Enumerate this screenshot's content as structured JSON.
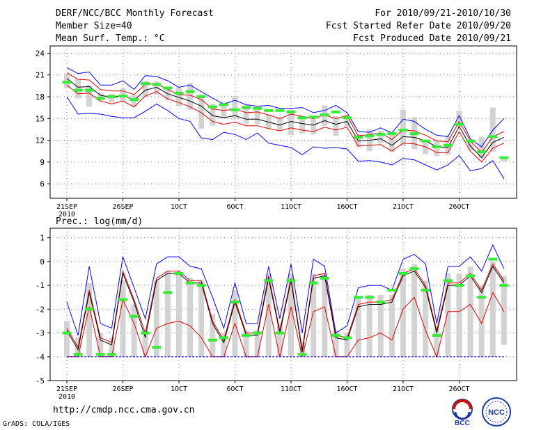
{
  "header": {
    "line1": "DERF/NCC/BCC Monthly Forecast",
    "line2": "Member Size=40",
    "line3": "Mean Surf. Temp.: °C",
    "right1": "For 2010/09/21-2010/10/30",
    "right2": "Fcst Started Refer Date 2010/09/20",
    "right3": "Fcst Produced Date 2010/09/21"
  },
  "footer": {
    "url": "http://cmdp.ncc.cma.gov.cn",
    "credit": "GrADS: COLA/IGES",
    "logo1_text": "BCC",
    "logo2_text": "NCC"
  },
  "colors": {
    "max_line": "#0000ff",
    "min_line": "#0000ff",
    "upper_line": "#e00000",
    "lower_line": "#e00000",
    "mean_line": "#000000",
    "box": "#d3d3d3",
    "median_tick": "#33ee33",
    "grid": "#777777"
  },
  "chart_data": [
    {
      "type": "line",
      "title": "Mean Surf. Temp.: °C",
      "ylim": [
        4,
        25
      ],
      "yticks": [
        6,
        9,
        12,
        15,
        18,
        21,
        24
      ],
      "ylabels": [
        "6",
        "9",
        "12",
        "15",
        "18",
        "21",
        "24"
      ],
      "x_days": 40,
      "xticks": [
        1,
        6,
        11,
        16,
        21,
        26,
        31,
        36
      ],
      "xlabels": [
        "21SEP",
        "26SEP",
        "1OCT",
        "6OCT",
        "11OCT",
        "16OCT",
        "21OCT",
        "26OCT"
      ],
      "xsublabel": "2010",
      "series": [
        {
          "name": "max",
          "values": [
            22.0,
            21.2,
            21.4,
            19.6,
            19.6,
            20.2,
            19.0,
            20.9,
            20.8,
            20.2,
            19.3,
            19.6,
            18.7,
            17.8,
            17.0,
            17.5,
            16.9,
            16.7,
            16.8,
            16.4,
            16.4,
            16.5,
            15.8,
            16.1,
            16.8,
            15.8,
            13.2,
            13.1,
            13.7,
            13.0,
            14.9,
            14.6,
            13.5,
            12.7,
            12.5,
            15.4,
            12.2,
            11.1,
            13.4,
            15.0
          ]
        },
        {
          "name": "upper",
          "values": [
            21.3,
            20.4,
            20.3,
            19.0,
            18.8,
            18.8,
            18.3,
            19.7,
            19.8,
            19.0,
            18.3,
            18.2,
            17.6,
            16.3,
            16.1,
            16.3,
            15.8,
            15.9,
            15.5,
            15.0,
            15.6,
            15.3,
            15.0,
            15.5,
            15.0,
            15.4,
            12.6,
            12.8,
            13.0,
            12.1,
            13.4,
            13.3,
            12.7,
            11.9,
            11.8,
            14.6,
            11.9,
            10.3,
            12.5,
            13.2
          ]
        },
        {
          "name": "mean",
          "values": [
            20.5,
            19.3,
            19.4,
            18.2,
            17.9,
            18.2,
            17.5,
            18.9,
            19.3,
            18.4,
            17.9,
            17.4,
            16.7,
            15.4,
            15.1,
            15.4,
            14.9,
            14.9,
            14.5,
            14.1,
            14.6,
            14.3,
            14.1,
            14.7,
            14.2,
            14.6,
            11.9,
            12.0,
            12.2,
            11.3,
            12.5,
            12.4,
            11.9,
            11.1,
            11.0,
            13.9,
            11.2,
            9.6,
            11.7,
            12.4
          ]
        },
        {
          "name": "lower",
          "values": [
            19.6,
            18.4,
            18.5,
            17.4,
            17.0,
            17.4,
            16.6,
            18.1,
            18.7,
            17.7,
            17.2,
            16.6,
            15.8,
            14.6,
            14.2,
            14.5,
            14.0,
            14.0,
            13.6,
            13.3,
            13.7,
            13.4,
            13.2,
            13.8,
            13.4,
            13.8,
            11.2,
            11.3,
            11.4,
            10.5,
            11.6,
            11.5,
            11.1,
            10.3,
            10.3,
            13.2,
            10.5,
            9.0,
            10.9,
            11.6
          ]
        },
        {
          "name": "min",
          "values": [
            18.0,
            15.6,
            15.7,
            15.6,
            15.3,
            15.1,
            15.1,
            16.0,
            17.0,
            16.1,
            15.0,
            14.6,
            12.3,
            12.1,
            13.1,
            12.8,
            12.1,
            13.0,
            11.6,
            11.3,
            11.0,
            10.0,
            11.1,
            10.9,
            11.0,
            10.8,
            9.1,
            9.2,
            9.0,
            8.6,
            9.5,
            9.3,
            8.6,
            7.9,
            8.6,
            9.9,
            7.8,
            8.1,
            9.2,
            6.7
          ]
        }
      ],
      "box_low": [
        19.2,
        17.8,
        16.6,
        17.4,
        17.2,
        17.3,
        16.6,
        17.9,
        18.3,
        17.5,
        16.7,
        16.2,
        13.6,
        14.0,
        15.0,
        14.9,
        14.3,
        14.2,
        13.6,
        13.3,
        12.7,
        12.9,
        12.8,
        14.0,
        12.6,
        13.9,
        11.0,
        10.5,
        11.6,
        10.4,
        11.2,
        10.8,
        10.1,
        9.8,
        10.0,
        13.8,
        10.6,
        9.5,
        10.4,
        9.1
      ],
      "box_high": [
        21.2,
        20.4,
        19.6,
        18.5,
        18.4,
        19.2,
        18.2,
        20.2,
        20.1,
        19.0,
        19.4,
        19.9,
        18.3,
        17.0,
        17.2,
        18.1,
        16.9,
        16.4,
        15.5,
        15.2,
        16.2,
        15.4,
        15.3,
        16.8,
        15.3,
        15.4,
        12.8,
        13.5,
        13.3,
        12.8,
        16.2,
        15.2,
        12.1,
        11.9,
        12.6,
        16.1,
        11.9,
        12.5,
        16.5,
        9.8
      ],
      "median": [
        20.0,
        18.9,
        18.9,
        17.8,
        18.0,
        18.1,
        17.6,
        19.8,
        19.7,
        19.2,
        18.5,
        18.7,
        18.0,
        16.6,
        16.9,
        16.2,
        16.5,
        16.4,
        16.1,
        16.1,
        15.9,
        15.1,
        15.2,
        15.5,
        15.9,
        15.1,
        12.4,
        12.6,
        12.8,
        12.9,
        13.4,
        12.9,
        11.9,
        11.1,
        11.3,
        14.2,
        11.9,
        10.4,
        12.5,
        9.6
      ]
    },
    {
      "type": "line",
      "title": "Prec.: log(mm/d)",
      "ylim": [
        -5,
        1.4
      ],
      "yticks": [
        -5,
        -4,
        -3,
        -2,
        -1,
        0,
        1
      ],
      "ylabels": [
        "-5",
        "-4",
        "-3",
        "-2",
        "-1",
        "0",
        "1"
      ],
      "x_days": 40,
      "xticks": [
        1,
        6,
        11,
        16,
        21,
        26,
        31,
        36
      ],
      "xlabels": [
        "21SEP",
        "26SEP",
        "1OCT",
        "6OCT",
        "11OCT",
        "16OCT",
        "21OCT",
        "26OCT"
      ],
      "xsublabel": "2010",
      "series": [
        {
          "name": "max",
          "values": [
            -1.7,
            -3.1,
            -0.2,
            -2.6,
            -2.8,
            0.2,
            -1.1,
            -2.4,
            -0.1,
            0.2,
            0.2,
            -0.2,
            -0.3,
            -1.5,
            -2.8,
            -0.9,
            -2.6,
            -2.6,
            -0.2,
            -2.4,
            -0.1,
            -3.0,
            0.1,
            -0.2,
            -3.0,
            -2.7,
            -1.1,
            -1.0,
            -1.0,
            -1.2,
            0.1,
            0.3,
            -0.1,
            -2.6,
            -0.2,
            -0.2,
            0.2,
            -0.4,
            0.7,
            -0.3
          ]
        },
        {
          "name": "upper",
          "values": [
            -2.8,
            -3.6,
            -1.2,
            -3.2,
            -3.4,
            -0.4,
            -1.6,
            -3.0,
            -0.7,
            -0.4,
            -0.4,
            -0.8,
            -0.8,
            -2.5,
            -3.3,
            -1.6,
            -3.0,
            -3.0,
            -0.6,
            -2.9,
            -0.7,
            -3.7,
            -0.6,
            -0.5,
            -3.1,
            -3.2,
            -1.8,
            -1.7,
            -1.7,
            -1.6,
            -0.5,
            -0.3,
            -1.0,
            -2.9,
            -0.9,
            -0.9,
            -0.5,
            -1.2,
            -0.1,
            -0.8
          ]
        },
        {
          "name": "mean",
          "values": [
            -2.9,
            -3.7,
            -1.3,
            -3.3,
            -3.5,
            -0.5,
            -1.7,
            -3.2,
            -0.8,
            -0.5,
            -0.5,
            -0.9,
            -0.9,
            -2.6,
            -3.4,
            -1.7,
            -3.1,
            -3.1,
            -0.7,
            -3.0,
            -0.8,
            -3.8,
            -0.7,
            -0.6,
            -3.2,
            -3.3,
            -1.9,
            -1.8,
            -1.8,
            -1.7,
            -0.6,
            -0.4,
            -1.1,
            -3.0,
            -1.0,
            -1.0,
            -0.6,
            -1.3,
            -0.2,
            -0.9
          ]
        },
        {
          "name": "lower",
          "values": [
            -4.0,
            -4.0,
            -1.9,
            -4.0,
            -4.0,
            -1.6,
            -2.6,
            -4.0,
            -2.8,
            -2.6,
            -2.5,
            -2.7,
            -3.2,
            -4.0,
            -4.0,
            -2.6,
            -4.0,
            -4.0,
            -1.8,
            -4.0,
            -1.9,
            -4.0,
            -2.1,
            -1.9,
            -4.0,
            -4.0,
            -3.3,
            -3.2,
            -3.0,
            -3.3,
            -2.0,
            -1.5,
            -2.9,
            -4.0,
            -2.1,
            -2.1,
            -1.8,
            -2.6,
            -1.3,
            -2.1
          ]
        },
        {
          "name": "min",
          "values": [
            -4.0,
            -4.0,
            -4.0,
            -4.0,
            -4.0,
            -4.0,
            -4.0,
            -4.0,
            -4.0,
            -4.0,
            -4.0,
            -4.0,
            -4.0,
            -4.0,
            -4.0,
            -4.0,
            -4.0,
            -4.0,
            -4.0,
            -4.0,
            -4.0,
            -4.0,
            -4.0,
            -4.0,
            -4.0,
            -4.0,
            -4.0,
            -4.0,
            -4.0,
            -4.0,
            -4.0,
            -4.0,
            -4.0,
            -4.0,
            -4.0,
            -4.0,
            -4.0,
            -4.0,
            -4.0,
            -4.0
          ]
        }
      ],
      "box_low": [
        -4.0,
        -4.0,
        -4.0,
        -4.0,
        -4.0,
        -4.0,
        -4.0,
        -4.0,
        -4.0,
        -4.0,
        -4.0,
        -4.0,
        -4.0,
        -4.0,
        -4.0,
        -4.0,
        -4.0,
        -4.0,
        -4.0,
        -4.0,
        -4.0,
        -4.0,
        -4.0,
        -4.0,
        -4.0,
        -4.0,
        -4.0,
        -4.0,
        -4.0,
        -4.0,
        -4.0,
        -4.0,
        -4.0,
        -4.0,
        -4.0,
        -4.0,
        -4.0,
        -4.0,
        -4.0,
        -3.5
      ],
      "box_high": [
        -2.5,
        -3.2,
        -0.9,
        -3.0,
        -3.2,
        -0.8,
        -1.8,
        -2.9,
        -0.8,
        -0.4,
        -0.4,
        -0.7,
        -0.8,
        -2.2,
        -3.0,
        -1.2,
        -2.9,
        -2.9,
        -0.5,
        -2.6,
        -0.5,
        -3.4,
        -0.5,
        -0.5,
        -2.9,
        -3.0,
        -1.5,
        -1.4,
        -1.4,
        -1.4,
        -0.3,
        -0.1,
        -0.8,
        -2.8,
        -0.5,
        -0.5,
        -0.2,
        -1.0,
        0.0,
        -0.6
      ],
      "median": [
        -3.0,
        -3.9,
        -2.0,
        -3.9,
        -3.9,
        -1.6,
        -2.3,
        -3.0,
        -3.6,
        -1.3,
        -0.5,
        -0.9,
        -1.0,
        -3.3,
        -3.2,
        -1.7,
        -3.1,
        -3.0,
        -0.8,
        -3.0,
        -0.8,
        -3.9,
        -0.9,
        -0.7,
        -3.1,
        -3.2,
        -1.5,
        -1.5,
        -1.7,
        -1.2,
        -0.5,
        -0.3,
        -1.2,
        -3.1,
        -0.8,
        -1.0,
        -0.6,
        -1.5,
        0.1,
        -1.0
      ]
    }
  ]
}
